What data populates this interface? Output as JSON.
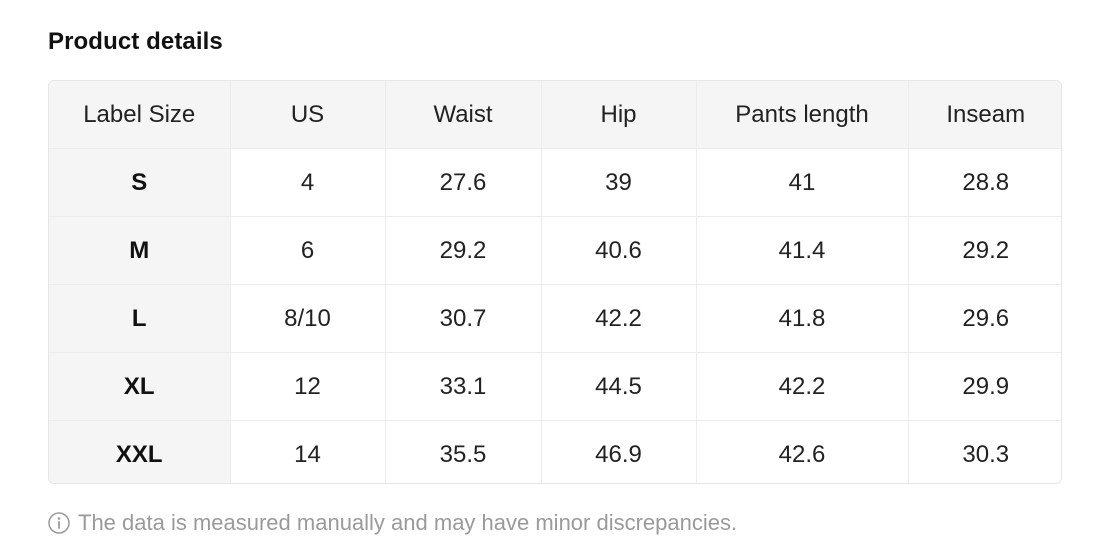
{
  "section": {
    "title": "Product details"
  },
  "size_table": {
    "headers": [
      "Label Size",
      "US",
      "Waist",
      "Hip",
      "Pants length",
      "Inseam"
    ],
    "rows": [
      [
        "S",
        "4",
        "27.6",
        "39",
        "41",
        "28.8"
      ],
      [
        "M",
        "6",
        "29.2",
        "40.6",
        "41.4",
        "29.2"
      ],
      [
        "L",
        "8/10",
        "30.7",
        "42.2",
        "41.8",
        "29.6"
      ],
      [
        "XL",
        "12",
        "33.1",
        "44.5",
        "42.2",
        "29.9"
      ],
      [
        "XXL",
        "14",
        "35.5",
        "46.9",
        "42.6",
        "30.3"
      ]
    ]
  },
  "note": {
    "icon": "info-icon",
    "text": "The data is measured manually and may have minor discrepancies."
  }
}
